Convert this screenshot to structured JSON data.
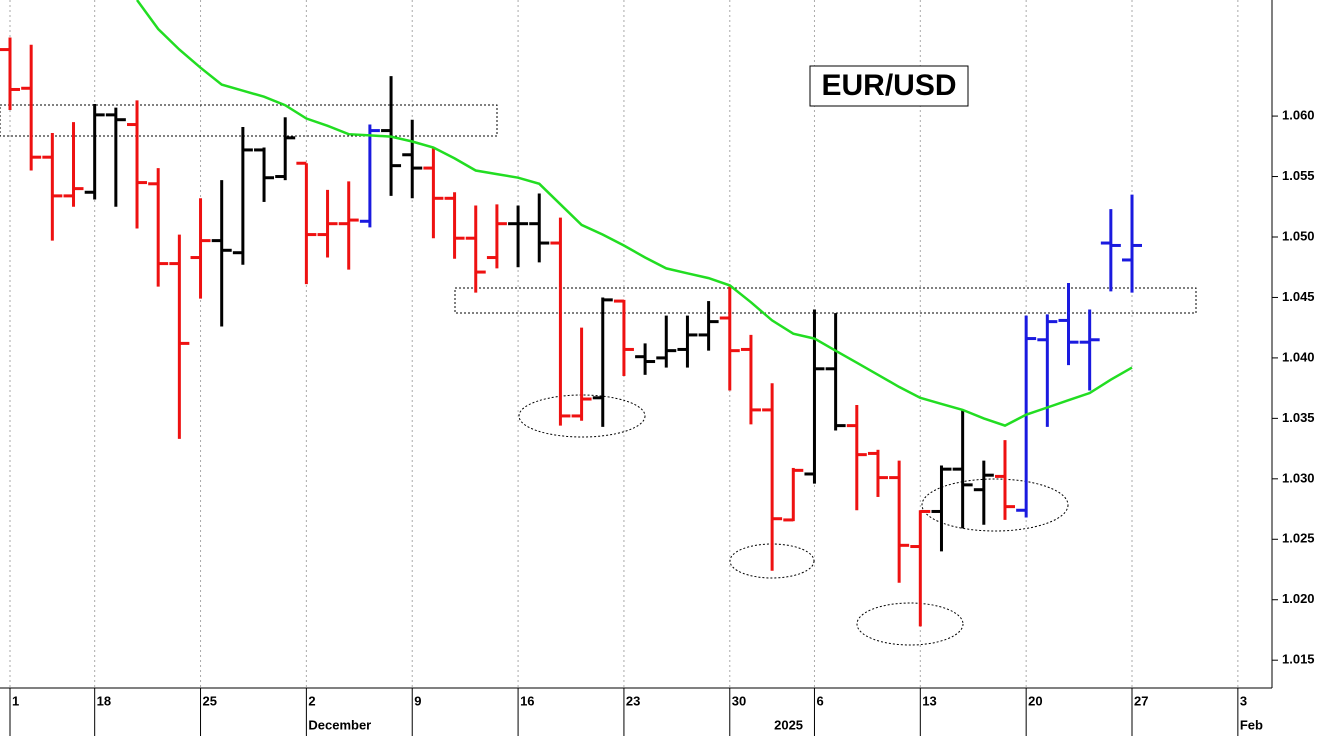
{
  "chart_data": {
    "type": "ohlc",
    "title": "EUR/USD",
    "categories": [
      "1",
      null,
      null,
      null,
      "18",
      null,
      null,
      null,
      null,
      "25",
      null,
      null,
      null,
      null,
      "2",
      null,
      null,
      null,
      null,
      "9",
      null,
      null,
      null,
      null,
      "16",
      null,
      null,
      null,
      null,
      "23",
      null,
      null,
      null,
      null,
      "30",
      null,
      null,
      null,
      "6",
      null,
      null,
      null,
      null,
      "13",
      null,
      null,
      null,
      null,
      "20",
      null,
      null,
      null,
      null,
      "27",
      null,
      null,
      null,
      null,
      "3"
    ],
    "months": [
      null,
      null,
      null,
      null,
      null,
      null,
      null,
      null,
      null,
      null,
      null,
      null,
      null,
      null,
      "December",
      null,
      null,
      null,
      null,
      null,
      null,
      null,
      null,
      null,
      null,
      null,
      null,
      null,
      null,
      null,
      null,
      null,
      null,
      null,
      null,
      null,
      "2025",
      null,
      null,
      null,
      null,
      null,
      null,
      null,
      null,
      null,
      null,
      null,
      null,
      null,
      null,
      null,
      null,
      null,
      null,
      null,
      null,
      null,
      "Feb"
    ],
    "open": [
      1.0655,
      1.0623,
      1.0566,
      1.0534,
      1.0537,
      1.0601,
      1.0593,
      1.0544,
      1.0478,
      1.0483,
      1.0497,
      1.0487,
      1.0572,
      1.055,
      1.0561,
      1.0502,
      1.0511,
      1.0513,
      1.0588,
      1.0568,
      1.0557,
      1.0532,
      1.0499,
      1.0483,
      1.0511,
      1.0511,
      1.0495,
      1.0352,
      1.0367,
      1.0447,
      1.0401,
      1.04,
      1.0407,
      1.0419,
      1.0433,
      1.0407,
      1.0357,
      1.0266,
      1.0304,
      1.0391,
      1.0344,
      1.0321,
      1.0301,
      1.0244,
      1.0273,
      1.0308,
      1.0291,
      1.0302,
      1.0274,
      1.0415,
      1.0431,
      1.0413,
      1.0495,
      1.0481,
      null,
      null,
      null,
      null,
      null
    ],
    "high": [
      1.0665,
      1.0659,
      1.0586,
      1.0595,
      1.061,
      1.0607,
      1.0613,
      1.0557,
      1.0502,
      1.0532,
      1.0547,
      1.0591,
      1.0574,
      1.0599,
      1.0561,
      1.0539,
      1.0546,
      1.0593,
      1.0633,
      1.0597,
      1.0574,
      1.0537,
      1.0526,
      1.0527,
      1.0526,
      1.0536,
      1.0516,
      1.0425,
      1.045,
      1.0448,
      1.0412,
      1.0435,
      1.0435,
      1.0447,
      1.0459,
      1.0419,
      1.0379,
      1.0309,
      1.044,
      1.0437,
      1.0361,
      1.0324,
      1.0315,
      1.0274,
      1.0311,
      1.0357,
      1.0315,
      1.0332,
      1.0435,
      1.0436,
      1.0462,
      1.044,
      1.0523,
      1.0535,
      null,
      null,
      null,
      null,
      null
    ],
    "low": [
      1.0605,
      1.0555,
      1.0497,
      1.0525,
      1.0531,
      1.0525,
      1.0507,
      1.0459,
      1.0333,
      1.0449,
      1.0426,
      1.0477,
      1.0529,
      1.0547,
      1.0461,
      1.0483,
      1.0473,
      1.0508,
      1.0534,
      1.0532,
      1.0499,
      1.0482,
      1.0454,
      1.0474,
      1.0475,
      1.0479,
      1.0344,
      1.0348,
      1.0343,
      1.0385,
      1.0386,
      1.0392,
      1.0392,
      1.0406,
      1.0373,
      1.0345,
      1.0224,
      1.0265,
      1.0296,
      1.034,
      1.0274,
      1.0285,
      1.0214,
      1.0178,
      1.024,
      1.0259,
      1.0262,
      1.0266,
      1.0268,
      1.0343,
      1.0394,
      1.0373,
      1.0455,
      1.0454,
      null,
      null,
      null,
      null,
      null
    ],
    "close": [
      1.0622,
      1.0566,
      1.0534,
      1.054,
      1.0601,
      1.0597,
      1.0545,
      1.0478,
      1.0412,
      1.0497,
      1.0489,
      1.0572,
      1.0549,
      1.0582,
      1.0502,
      1.0511,
      1.0514,
      1.0588,
      1.0559,
      1.0557,
      1.0532,
      1.0499,
      1.0471,
      1.0511,
      1.0511,
      1.0495,
      1.0352,
      1.0366,
      1.0448,
      1.0407,
      1.0397,
      1.0406,
      1.0419,
      1.043,
      1.0406,
      1.0357,
      1.0267,
      1.0307,
      1.0391,
      1.0344,
      1.032,
      1.0301,
      1.0245,
      1.0273,
      1.0308,
      1.0295,
      1.0303,
      1.0277,
      1.0416,
      1.043,
      1.0413,
      1.0415,
      1.0493,
      1.0493,
      null,
      null,
      null,
      null,
      null
    ],
    "palette": [
      "#ee1111",
      "#000000",
      "#1a1adf"
    ],
    "bar_color": [
      0,
      0,
      0,
      0,
      1,
      1,
      0,
      0,
      0,
      0,
      1,
      1,
      1,
      1,
      0,
      0,
      0,
      2,
      1,
      1,
      0,
      0,
      0,
      0,
      1,
      1,
      0,
      0,
      1,
      0,
      1,
      1,
      1,
      1,
      0,
      0,
      0,
      0,
      1,
      1,
      0,
      0,
      0,
      0,
      1,
      1,
      1,
      0,
      2,
      2,
      2,
      2,
      2,
      2,
      null,
      null,
      null,
      null,
      null
    ],
    "ma": {
      "color": "#22dd22",
      "values": [
        null,
        null,
        null,
        null,
        null,
        null,
        1.0696,
        1.0672,
        1.0655,
        1.064,
        1.0626,
        1.0621,
        1.0616,
        1.0609,
        1.0598,
        1.0592,
        1.0585,
        1.0584,
        1.0583,
        1.0579,
        1.0574,
        1.0565,
        1.0555,
        1.0552,
        1.0549,
        1.0544,
        1.0527,
        1.051,
        1.0502,
        1.0493,
        1.0483,
        1.0474,
        1.047,
        1.0466,
        1.046,
        1.0446,
        1.0431,
        1.042,
        1.0416,
        1.0406,
        1.0396,
        1.0386,
        1.0376,
        1.0367,
        1.0362,
        1.0357,
        1.035,
        1.0344,
        1.0353,
        1.0359,
        1.0365,
        1.0371,
        1.0382,
        1.0392,
        null,
        null,
        null,
        null,
        null
      ]
    },
    "ylim": [
      1.0127,
      1.0696
    ],
    "yticks": [
      1.015,
      {
        "value": 1.02,
        "label": "1.020"
      },
      1.025,
      {
        "value": 1.03,
        "label": "1.030"
      },
      1.035,
      {
        "value": 1.04,
        "label": "1.040"
      },
      1.045,
      {
        "value": 1.05,
        "label": "1.050"
      },
      1.055,
      {
        "value": 1.06,
        "label": "1.060"
      }
    ],
    "grid": "x"
  }
}
